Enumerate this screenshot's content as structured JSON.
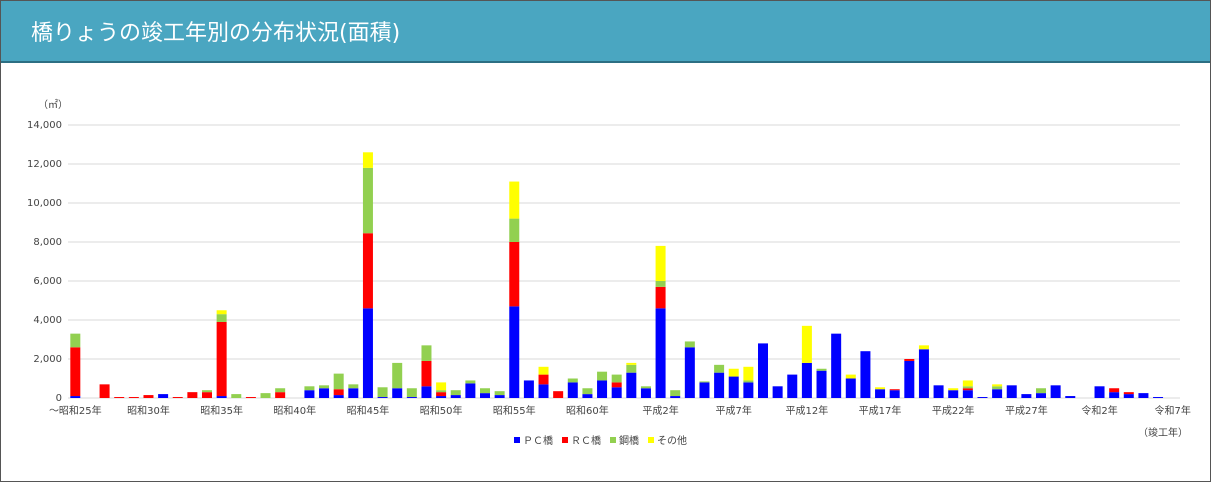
{
  "chart_data": {
    "type": "bar",
    "stacked": true,
    "title": "橋りょうの竣工年別の分布状況(面積)",
    "y_label": "（㎡）",
    "x_label": "（竣工年）",
    "categories": [
      "～昭和25年",
      null,
      null,
      null,
      null,
      "昭和30年",
      null,
      null,
      null,
      null,
      "昭和35年",
      null,
      null,
      null,
      null,
      "昭和40年",
      null,
      null,
      null,
      null,
      "昭和45年",
      null,
      null,
      null,
      null,
      "昭和50年",
      null,
      null,
      null,
      null,
      "昭和55年",
      null,
      null,
      null,
      null,
      "昭和60年",
      null,
      null,
      null,
      null,
      "平成2年",
      null,
      null,
      null,
      null,
      "平成7年",
      null,
      null,
      null,
      null,
      "平成12年",
      null,
      null,
      null,
      null,
      "平成17年",
      null,
      null,
      null,
      null,
      "平成22年",
      null,
      null,
      null,
      null,
      "平成27年",
      null,
      null,
      null,
      null,
      "令和2年",
      null,
      null,
      null,
      null,
      "令和7年"
    ],
    "series": [
      {
        "name": "ＰＣ橋",
        "color": "#0000ff",
        "values": [
          100,
          0,
          0,
          0,
          0,
          0,
          200,
          0,
          0,
          0,
          100,
          0,
          0,
          0,
          0,
          0,
          400,
          500,
          150,
          500,
          4600,
          50,
          500,
          50,
          600,
          100,
          150,
          750,
          250,
          150,
          4700,
          900,
          700,
          0,
          800,
          200,
          900,
          550,
          1300,
          500,
          4600,
          100,
          2600,
          800,
          1300,
          1100,
          800,
          2800,
          600,
          1200,
          1800,
          1400,
          3300,
          1000,
          2400,
          450,
          400,
          1900,
          2500,
          650,
          400,
          400,
          50,
          450,
          650,
          200,
          250,
          650,
          100,
          0,
          600,
          300,
          200,
          250,
          50,
          0
        ]
      },
      {
        "name": "ＲＣ橋",
        "color": "#ff0000",
        "values": [
          2500,
          0,
          700,
          50,
          50,
          150,
          0,
          50,
          300,
          300,
          3800,
          0,
          50,
          0,
          300,
          0,
          0,
          0,
          300,
          0,
          3850,
          0,
          0,
          0,
          1300,
          200,
          0,
          0,
          0,
          0,
          3300,
          0,
          500,
          350,
          0,
          0,
          0,
          250,
          0,
          0,
          1100,
          0,
          0,
          0,
          0,
          0,
          0,
          0,
          0,
          0,
          0,
          0,
          0,
          0,
          0,
          0,
          50,
          100,
          0,
          0,
          0,
          100,
          0,
          0,
          0,
          0,
          0,
          0,
          0,
          0,
          0,
          200,
          100,
          0,
          0,
          0
        ]
      },
      {
        "name": "鋼橋",
        "color": "#92d050",
        "values": [
          700,
          0,
          0,
          0,
          0,
          0,
          0,
          0,
          0,
          100,
          400,
          200,
          0,
          250,
          200,
          0,
          200,
          150,
          800,
          200,
          3350,
          500,
          1300,
          450,
          800,
          100,
          250,
          150,
          250,
          200,
          1200,
          0,
          0,
          0,
          200,
          300,
          450,
          400,
          400,
          100,
          300,
          300,
          300,
          50,
          400,
          0,
          100,
          0,
          0,
          0,
          0,
          100,
          0,
          0,
          0,
          0,
          0,
          0,
          0,
          0,
          0,
          100,
          0,
          150,
          0,
          0,
          250,
          0,
          0,
          0,
          0,
          0,
          0,
          0,
          0,
          0
        ]
      },
      {
        "name": "その他",
        "color": "#ffff00",
        "values": [
          0,
          0,
          0,
          0,
          0,
          0,
          0,
          0,
          0,
          0,
          200,
          0,
          0,
          0,
          0,
          0,
          0,
          0,
          0,
          0,
          800,
          0,
          0,
          0,
          0,
          400,
          0,
          0,
          0,
          0,
          1900,
          0,
          400,
          0,
          0,
          0,
          0,
          0,
          100,
          0,
          1800,
          0,
          0,
          0,
          0,
          400,
          700,
          0,
          0,
          0,
          1900,
          0,
          0,
          200,
          0,
          100,
          0,
          0,
          200,
          0,
          100,
          300,
          0,
          100,
          0,
          0,
          0,
          0,
          0,
          0,
          0,
          0,
          0,
          0,
          0,
          0
        ]
      }
    ],
    "ylim": [
      0,
      14000
    ],
    "yticks": [
      0,
      {
        "value": 2000,
        "label": "2,000"
      },
      {
        "value": 4000,
        "label": "4,000"
      },
      {
        "value": 6000,
        "label": "6,000"
      },
      {
        "value": 8000,
        "label": "8,000"
      },
      {
        "value": 10000,
        "label": "10,000"
      },
      {
        "value": 12000,
        "label": "12,000"
      },
      {
        "value": 14000,
        "label": "14,000"
      }
    ],
    "grid": true,
    "legend": "bottom"
  }
}
